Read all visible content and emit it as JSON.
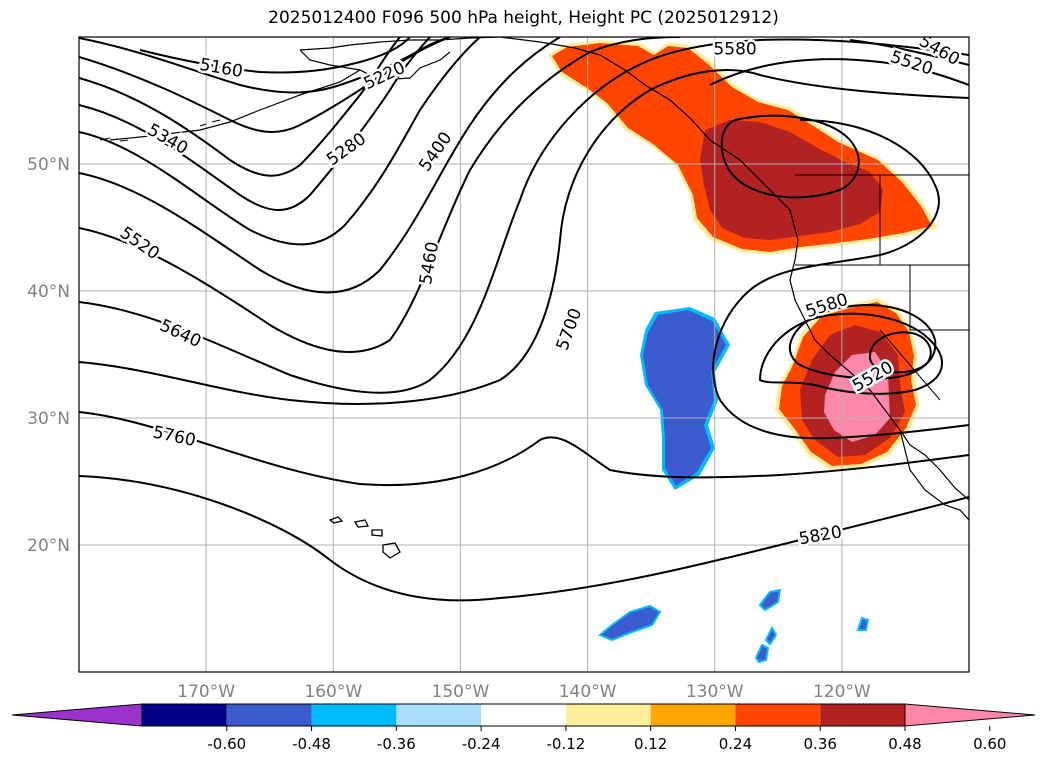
{
  "title": "2025012400 F096 500 hPa height, Height PC (2025012912)",
  "map": {
    "projection": "PlateCarree",
    "lon_range": [
      -180,
      -110
    ],
    "lat_range": [
      10,
      60
    ],
    "lon_ticks": [
      {
        "lon": -170,
        "label": "170°W"
      },
      {
        "lon": -160,
        "label": "160°W"
      },
      {
        "lon": -150,
        "label": "150°W"
      },
      {
        "lon": -140,
        "label": "140°W"
      },
      {
        "lon": -130,
        "label": "130°W"
      },
      {
        "lon": -120,
        "label": "120°W"
      }
    ],
    "lat_ticks": [
      {
        "lat": 50,
        "label": "50°N"
      },
      {
        "lat": 40,
        "label": "40°N"
      },
      {
        "lat": 30,
        "label": "30°N"
      },
      {
        "lat": 20,
        "label": "20°N"
      }
    ],
    "tick_color": "#808080",
    "grid": true
  },
  "contour_labels": [
    {
      "text": "5160",
      "lon": -168.8,
      "lat": 57.6,
      "rot": 10
    },
    {
      "text": "5220",
      "lon": -156.0,
      "lat": 57.0,
      "rot": -25
    },
    {
      "text": "5280",
      "lon": -159.0,
      "lat": 51.2,
      "rot": -35
    },
    {
      "text": "5340",
      "lon": -173.0,
      "lat": 52.0,
      "rot": 30
    },
    {
      "text": "5400",
      "lon": -152.0,
      "lat": 51.0,
      "rot": -55
    },
    {
      "text": "5460",
      "lon": -152.5,
      "lat": 42.2,
      "rot": -80
    },
    {
      "text": "5520",
      "lon": -175.2,
      "lat": 43.8,
      "rot": 35
    },
    {
      "text": "5640",
      "lon": -172.0,
      "lat": 36.7,
      "rot": 25
    },
    {
      "text": "5700",
      "lon": -141.5,
      "lat": 37.0,
      "rot": -70
    },
    {
      "text": "5760",
      "lon": -172.5,
      "lat": 28.6,
      "rot": 12
    },
    {
      "text": "5820",
      "lon": -121.7,
      "lat": 20.8,
      "rot": -10
    },
    {
      "text": "5580",
      "lon": -128.4,
      "lat": 59.1,
      "rot": 0
    },
    {
      "text": "5520",
      "lon": -114.5,
      "lat": 58.0,
      "rot": 18
    },
    {
      "text": "5460",
      "lon": -112.3,
      "lat": 59.0,
      "rot": 30
    },
    {
      "text": "5580",
      "lon": -121.2,
      "lat": 38.9,
      "rot": -18
    },
    {
      "text": "5520",
      "lon": -117.6,
      "lat": 33.3,
      "rot": -30
    }
  ],
  "colorbar": {
    "ticks": [
      "-0.60",
      "-0.48",
      "-0.36",
      "-0.24",
      "-0.12",
      "0.12",
      "0.24",
      "0.36",
      "0.48",
      "0.60"
    ],
    "colors": [
      "#9933cc",
      "#000088",
      "#3a5ccc",
      "#00bbff",
      "#aaddff",
      "#ffffff",
      "#ffee99",
      "#ffa500",
      "#ff4500",
      "#b22222",
      "#ff88aa"
    ]
  },
  "anomaly_colors": {
    "neg_outer": "#00bbff",
    "neg_mid": "#3a5ccc",
    "neg_inner": "#000088",
    "pos_edge": "#ffee99",
    "pos_low": "#ff4500",
    "pos_mid": "#b22222",
    "pos_high": "#ff88aa"
  }
}
